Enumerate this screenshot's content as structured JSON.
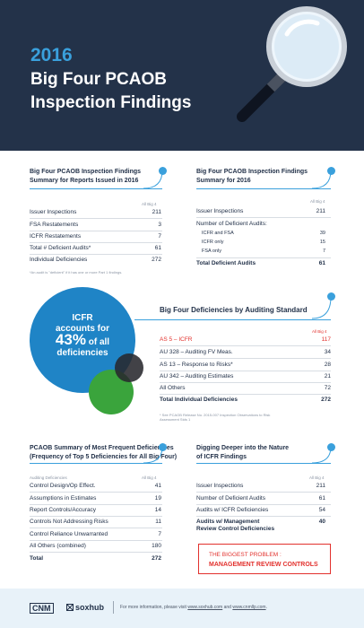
{
  "header": {
    "year": "2016",
    "title_line1": "Big Four PCAOB",
    "title_line2": "Inspection Findings"
  },
  "col_all_big4": "All Big 4",
  "summary_reports": {
    "title_line1": "Big Four PCAOB Inspection Findings",
    "title_line2": "Summary for Reports Issued in 2016",
    "rows": [
      {
        "label": "Issuer Inspections",
        "value": "211"
      },
      {
        "label": "FSA Restatements",
        "value": "3"
      },
      {
        "label": "ICFR Restatements",
        "value": "7"
      },
      {
        "label": "Total # Deficient Audits*",
        "value": "61"
      },
      {
        "label": "Individual Deficiencies",
        "value": "272"
      }
    ],
    "note": "*An audit is \"deficient\" if it has one or more Part 1 findings."
  },
  "summary_2016": {
    "title_line1": "Big Four PCAOB Inspection Findings",
    "title_line2": "Summary for 2016",
    "issuer_label": "Issuer Inspections",
    "issuer_value": "211",
    "deficient_header": "Number of Deficient Audits:",
    "sub_rows": [
      {
        "label": "ICFR and FSA",
        "value": "39"
      },
      {
        "label": "ICFR only",
        "value": "15"
      },
      {
        "label": "FSA only",
        "value": "7"
      }
    ],
    "total_label": "Total Deficient Audits",
    "total_value": "61"
  },
  "circle": {
    "line1": "ICFR",
    "line2": "accounts for",
    "pct": "43%",
    "pct_suffix": " of all",
    "line4": "deficiencies"
  },
  "by_standard": {
    "title": "Big Four Deficiencies by Auditing Standard",
    "rows": [
      {
        "label": "AS 5 – ICFR",
        "value": "117"
      },
      {
        "label": "AU 328 – Auditing FV Meas.",
        "value": "34"
      },
      {
        "label": "AS 13 – Response to Risks*",
        "value": "28"
      },
      {
        "label": "AU 342 – Auditing Estimates",
        "value": "21"
      },
      {
        "label": "All Others",
        "value": "72"
      }
    ],
    "total_label": "Total Individual Deficiencies",
    "total_value": "272",
    "note_line1": "* See PCAOB Release No. 2015-007 Inspection Observations to Risk",
    "note_line2": "Assessment Stds 1"
  },
  "frequent": {
    "title_line1": "PCAOB Summary of Most Frequent Deficiencies",
    "title_line2": "(Frequency of Top 5 Deficiencies for All Big Four)",
    "col_left": "Auditing Deficiencies",
    "rows": [
      {
        "label": "Control Design/Op Effect.",
        "value": "41"
      },
      {
        "label": "Assumptions in Estimates",
        "value": "19"
      },
      {
        "label": "Report Controls/Accuracy",
        "value": "14"
      },
      {
        "label": "Controls Not Addressing Risks",
        "value": "11"
      },
      {
        "label": "Control Reliance Unwarranted",
        "value": "7"
      },
      {
        "label": "All Others (combined)",
        "value": "180"
      }
    ],
    "total_label": "Total",
    "total_value": "272"
  },
  "deeper": {
    "title_line1": "Digging Deeper into the Nature",
    "title_line2": "of ICFR Findings",
    "rows": [
      {
        "label": "Issuer Inspections",
        "value": "211"
      },
      {
        "label": "Number of Deficient Audits",
        "value": "61"
      },
      {
        "label": "Audits w/ ICFR Deficiencies",
        "value": "54"
      }
    ],
    "bold_line1": "Audits w/ Management",
    "bold_line2": "Review Control Deficiencies",
    "bold_value": "40",
    "callout_line1": "THE BIGGEST PROBLEM :",
    "callout_line2": "MANAGEMENT REVIEW CONTROLS"
  },
  "footer": {
    "cnm": "CNM",
    "soxhub": "soxhub",
    "text_prefix": "For more information, please visit",
    "link1": "www.soxhub.com",
    "and": "and",
    "link2": "www.cnmllp.com",
    "suffix": "."
  },
  "colors": {
    "navy": "#233249",
    "accent_blue": "#3aa0dc",
    "circle_blue": "#1f84c6",
    "green": "#3aa43c",
    "red": "#e2312d"
  }
}
